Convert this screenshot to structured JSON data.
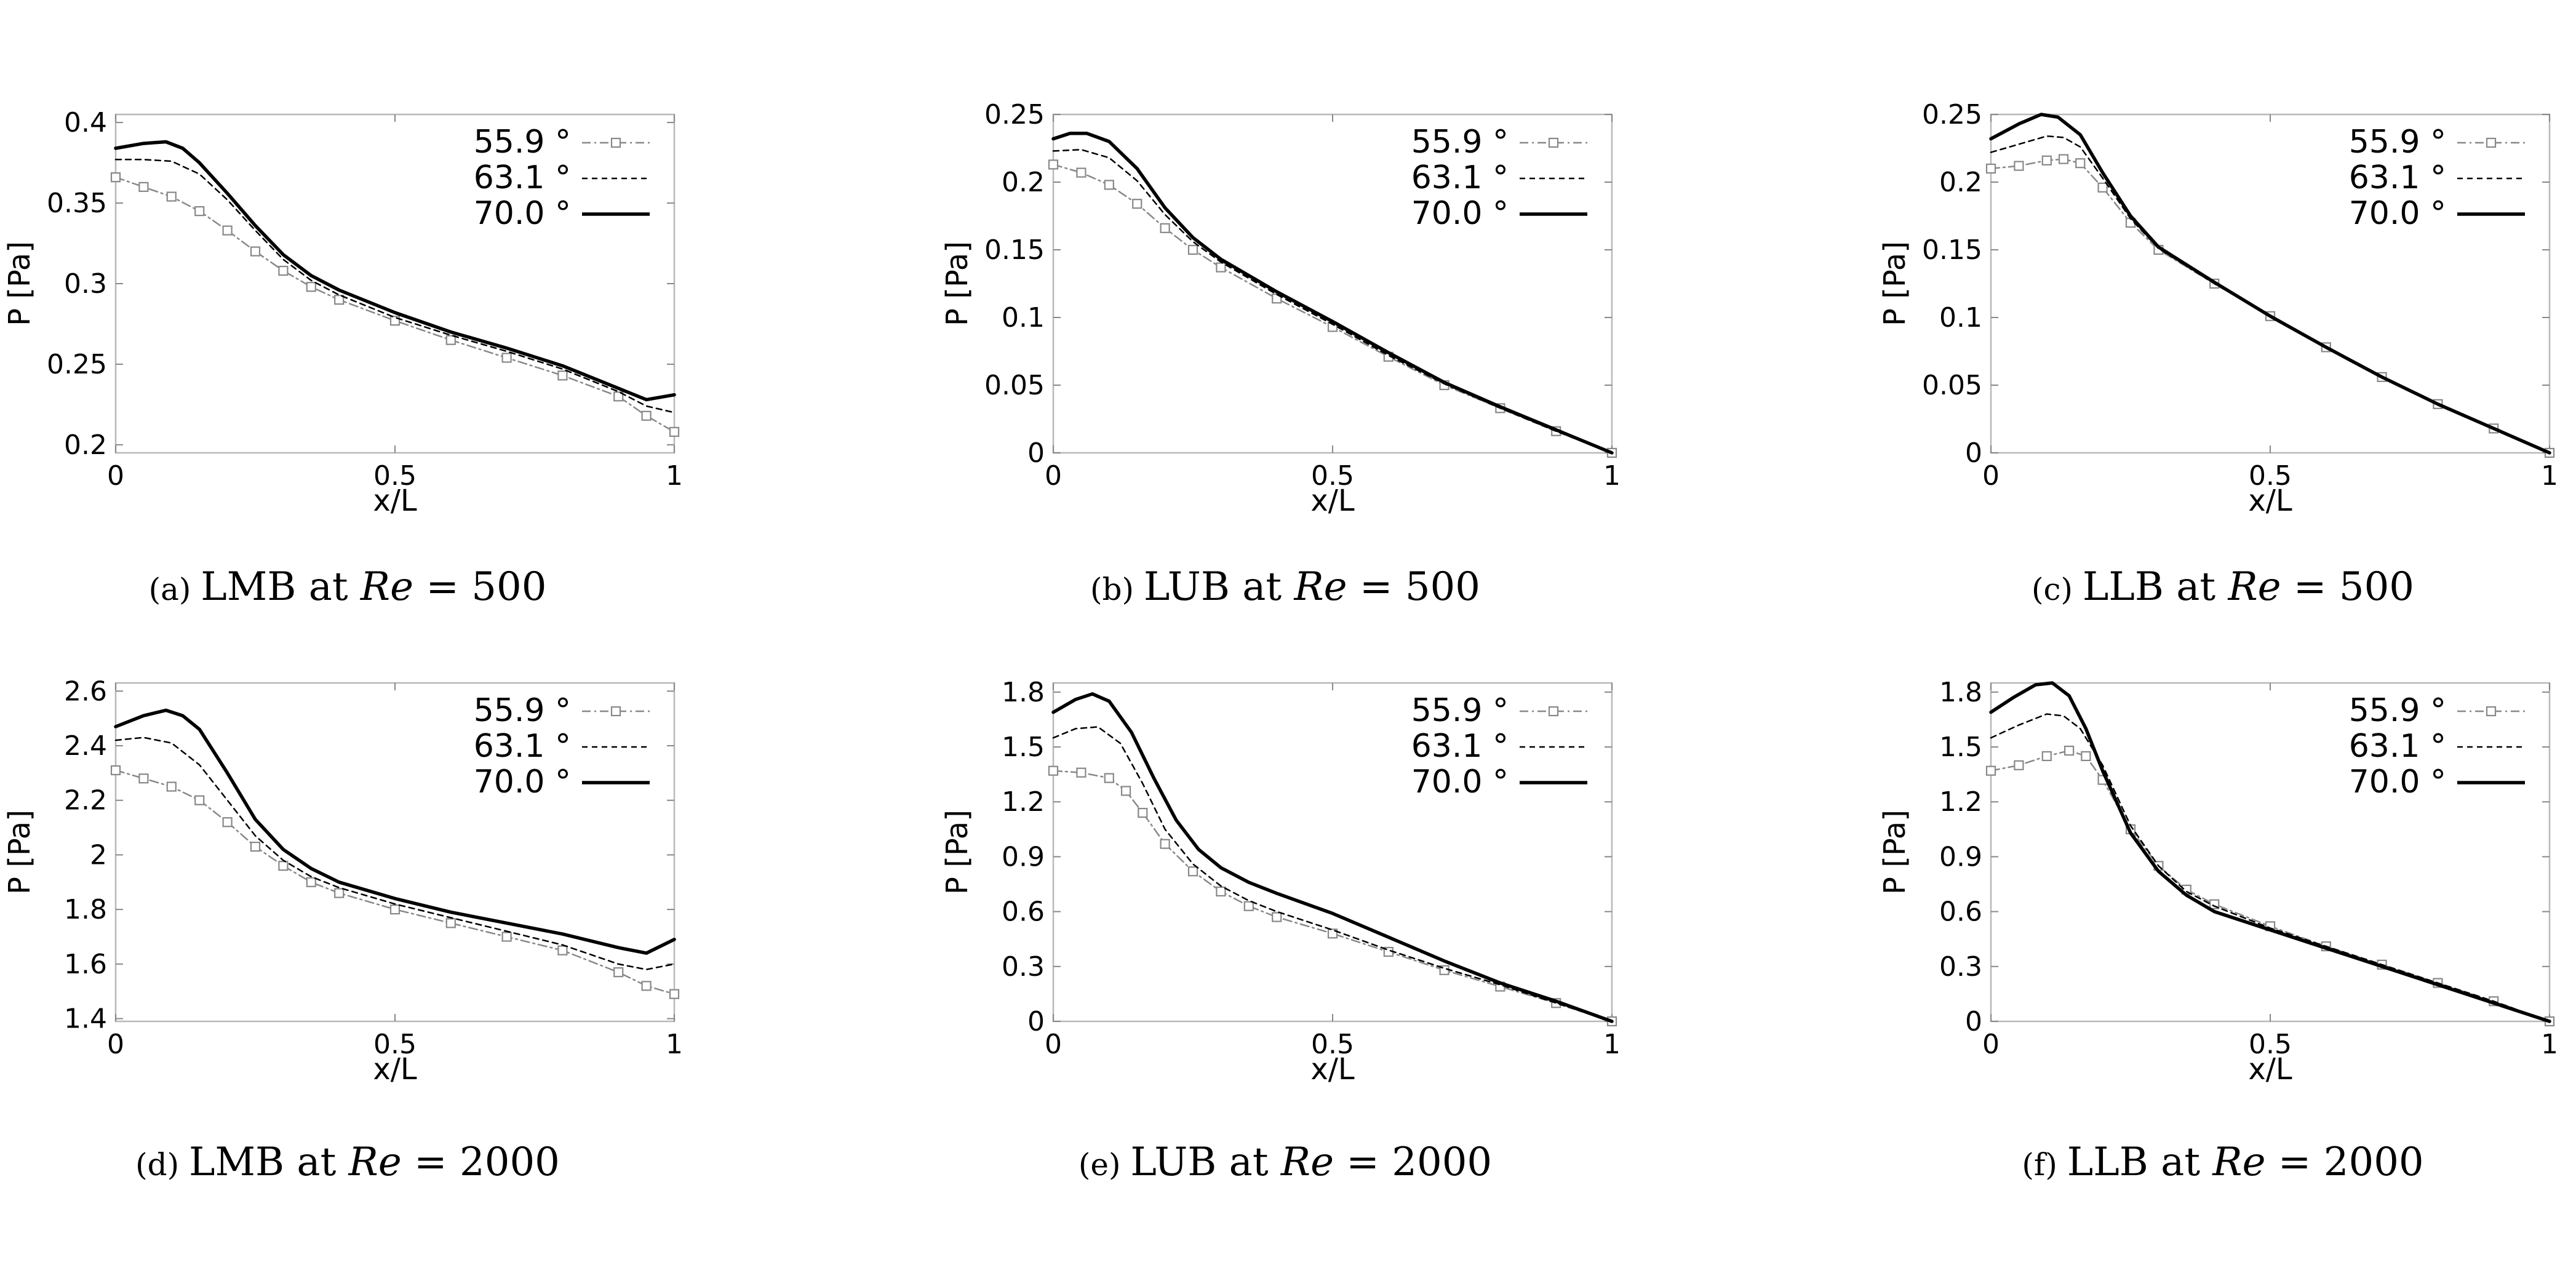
{
  "legend_unit": "°",
  "series_styles": [
    {
      "name": "55.9",
      "color": "#888888",
      "dash": "14,6,3,6",
      "width": 2.5,
      "marker": "square"
    },
    {
      "name": "63.1",
      "color": "#000000",
      "dash": "9,7",
      "width": 2.5,
      "marker": "none"
    },
    {
      "name": "70.0",
      "color": "#000000",
      "dash": "",
      "width": 5.5,
      "marker": "none"
    }
  ],
  "chart_data": [
    {
      "type": "line",
      "caption": {
        "tag": "(a)",
        "text": "LMB at",
        "var": "Re",
        "eq": " = 500"
      },
      "xlabel": "x/L",
      "ylabel": "P [Pa]",
      "xlim": [
        0,
        1
      ],
      "ylim": [
        0.195,
        0.405
      ],
      "xticks": [
        "0",
        "0.5",
        "1"
      ],
      "xtick_values": [
        0,
        0.5,
        1
      ],
      "yticks": [
        "0.2",
        "0.25",
        "0.3",
        "0.35",
        "0.4"
      ],
      "ytick_values": [
        0.2,
        0.25,
        0.3,
        0.35,
        0.4
      ],
      "series": [
        {
          "name": "55.9 °",
          "x": [
            0,
            0.05,
            0.1,
            0.15,
            0.2,
            0.25,
            0.3,
            0.35,
            0.4,
            0.5,
            0.6,
            0.7,
            0.8,
            0.9,
            0.95,
            1.0
          ],
          "y": [
            0.366,
            0.36,
            0.354,
            0.345,
            0.333,
            0.32,
            0.308,
            0.298,
            0.29,
            0.277,
            0.265,
            0.254,
            0.243,
            0.23,
            0.218,
            0.208
          ]
        },
        {
          "name": "63.1 °",
          "x": [
            0,
            0.05,
            0.1,
            0.15,
            0.2,
            0.25,
            0.3,
            0.35,
            0.4,
            0.5,
            0.6,
            0.7,
            0.8,
            0.9,
            0.95,
            1.0
          ],
          "y": [
            0.377,
            0.377,
            0.376,
            0.368,
            0.352,
            0.333,
            0.315,
            0.302,
            0.293,
            0.279,
            0.268,
            0.258,
            0.247,
            0.233,
            0.224,
            0.22
          ]
        },
        {
          "name": "70.0 °",
          "x": [
            0,
            0.05,
            0.09,
            0.12,
            0.15,
            0.2,
            0.25,
            0.3,
            0.35,
            0.4,
            0.5,
            0.6,
            0.7,
            0.8,
            0.9,
            0.95,
            1.0
          ],
          "y": [
            0.384,
            0.387,
            0.388,
            0.384,
            0.375,
            0.356,
            0.336,
            0.318,
            0.305,
            0.296,
            0.282,
            0.27,
            0.26,
            0.249,
            0.235,
            0.228,
            0.231
          ]
        }
      ]
    },
    {
      "type": "line",
      "caption": {
        "tag": "(b)",
        "text": "LUB at",
        "var": "Re",
        "eq": " = 500"
      },
      "xlabel": "x/L",
      "ylabel": "P [Pa]",
      "xlim": [
        0,
        1
      ],
      "ylim": [
        0,
        0.25
      ],
      "xticks": [
        "0",
        "0.5",
        "1"
      ],
      "xtick_values": [
        0,
        0.5,
        1
      ],
      "yticks": [
        "0",
        "0.05",
        "0.1",
        "0.15",
        "0.2",
        "0.25"
      ],
      "ytick_values": [
        0,
        0.05,
        0.1,
        0.15,
        0.2,
        0.25
      ],
      "series": [
        {
          "name": "55.9 °",
          "x": [
            0,
            0.05,
            0.1,
            0.15,
            0.2,
            0.25,
            0.3,
            0.4,
            0.5,
            0.6,
            0.7,
            0.8,
            0.9,
            1.0
          ],
          "y": [
            0.213,
            0.207,
            0.198,
            0.184,
            0.166,
            0.15,
            0.137,
            0.114,
            0.093,
            0.071,
            0.05,
            0.033,
            0.016,
            0.0
          ]
        },
        {
          "name": "63.1 °",
          "x": [
            0,
            0.05,
            0.1,
            0.15,
            0.2,
            0.25,
            0.3,
            0.4,
            0.5,
            0.6,
            0.7,
            0.8,
            0.9,
            1.0
          ],
          "y": [
            0.223,
            0.224,
            0.218,
            0.201,
            0.176,
            0.156,
            0.141,
            0.117,
            0.095,
            0.072,
            0.051,
            0.033,
            0.016,
            0.0
          ]
        },
        {
          "name": "70.0 °",
          "x": [
            0,
            0.03,
            0.06,
            0.1,
            0.15,
            0.2,
            0.25,
            0.3,
            0.4,
            0.5,
            0.6,
            0.7,
            0.8,
            0.9,
            1.0
          ],
          "y": [
            0.232,
            0.236,
            0.236,
            0.23,
            0.21,
            0.181,
            0.159,
            0.143,
            0.119,
            0.097,
            0.074,
            0.052,
            0.034,
            0.017,
            0.0
          ]
        }
      ]
    },
    {
      "type": "line",
      "caption": {
        "tag": "(c)",
        "text": "LLB at",
        "var": "Re",
        "eq": " = 500"
      },
      "xlabel": "x/L",
      "ylabel": "P [Pa]",
      "xlim": [
        0,
        1
      ],
      "ylim": [
        0,
        0.25
      ],
      "xticks": [
        "0",
        "0.5",
        "1"
      ],
      "xtick_values": [
        0,
        0.5,
        1
      ],
      "yticks": [
        "0",
        "0.05",
        "0.1",
        "0.15",
        "0.2",
        "0.25"
      ],
      "ytick_values": [
        0,
        0.05,
        0.1,
        0.15,
        0.2,
        0.25
      ],
      "series": [
        {
          "name": "55.9 °",
          "x": [
            0,
            0.05,
            0.1,
            0.13,
            0.16,
            0.2,
            0.25,
            0.3,
            0.4,
            0.5,
            0.6,
            0.7,
            0.8,
            0.9,
            1.0
          ],
          "y": [
            0.21,
            0.212,
            0.216,
            0.217,
            0.214,
            0.196,
            0.17,
            0.15,
            0.125,
            0.101,
            0.078,
            0.056,
            0.036,
            0.018,
            0.0
          ]
        },
        {
          "name": "63.1 °",
          "x": [
            0,
            0.05,
            0.1,
            0.13,
            0.16,
            0.2,
            0.25,
            0.3,
            0.4,
            0.5,
            0.6,
            0.7,
            0.8,
            0.9,
            1.0
          ],
          "y": [
            0.222,
            0.228,
            0.234,
            0.233,
            0.226,
            0.203,
            0.173,
            0.151,
            0.125,
            0.101,
            0.078,
            0.056,
            0.036,
            0.018,
            0.0
          ]
        },
        {
          "name": "70.0 °",
          "x": [
            0,
            0.05,
            0.09,
            0.12,
            0.16,
            0.2,
            0.25,
            0.3,
            0.4,
            0.5,
            0.6,
            0.7,
            0.8,
            0.9,
            1.0
          ],
          "y": [
            0.232,
            0.243,
            0.25,
            0.248,
            0.235,
            0.207,
            0.175,
            0.152,
            0.126,
            0.101,
            0.078,
            0.056,
            0.036,
            0.018,
            0.0
          ]
        }
      ]
    },
    {
      "type": "line",
      "caption": {
        "tag": "(d)",
        "text": "LMB at",
        "var": "Re",
        "eq": " = 2000"
      },
      "xlabel": "x/L",
      "ylabel": "P [Pa]",
      "xlim": [
        0,
        1
      ],
      "ylim": [
        1.39,
        2.63
      ],
      "xticks": [
        "0",
        "0.5",
        "1"
      ],
      "xtick_values": [
        0,
        0.5,
        1
      ],
      "yticks": [
        "1.4",
        "1.6",
        "1.8",
        "2",
        "2.2",
        "2.4",
        "2.6"
      ],
      "ytick_values": [
        1.4,
        1.6,
        1.8,
        2.0,
        2.2,
        2.4,
        2.6
      ],
      "series": [
        {
          "name": "55.9 °",
          "x": [
            0,
            0.05,
            0.1,
            0.15,
            0.2,
            0.25,
            0.3,
            0.35,
            0.4,
            0.5,
            0.6,
            0.7,
            0.8,
            0.9,
            0.95,
            1.0
          ],
          "y": [
            2.31,
            2.28,
            2.25,
            2.2,
            2.12,
            2.03,
            1.96,
            1.9,
            1.86,
            1.8,
            1.75,
            1.7,
            1.65,
            1.57,
            1.52,
            1.49
          ]
        },
        {
          "name": "63.1 °",
          "x": [
            0,
            0.05,
            0.1,
            0.15,
            0.2,
            0.25,
            0.3,
            0.35,
            0.4,
            0.5,
            0.6,
            0.7,
            0.8,
            0.9,
            0.95,
            1.0
          ],
          "y": [
            2.42,
            2.43,
            2.41,
            2.33,
            2.2,
            2.07,
            1.98,
            1.92,
            1.88,
            1.82,
            1.77,
            1.72,
            1.67,
            1.6,
            1.58,
            1.6
          ]
        },
        {
          "name": "70.0 °",
          "x": [
            0,
            0.05,
            0.09,
            0.12,
            0.15,
            0.2,
            0.25,
            0.3,
            0.35,
            0.4,
            0.5,
            0.6,
            0.7,
            0.8,
            0.9,
            0.95,
            1.0
          ],
          "y": [
            2.47,
            2.51,
            2.53,
            2.51,
            2.46,
            2.3,
            2.13,
            2.02,
            1.95,
            1.9,
            1.84,
            1.79,
            1.75,
            1.71,
            1.66,
            1.64,
            1.69
          ]
        }
      ]
    },
    {
      "type": "line",
      "caption": {
        "tag": "(e)",
        "text": "LUB at",
        "var": "Re",
        "eq": " = 2000"
      },
      "xlabel": "x/L",
      "ylabel": "P [Pa]",
      "xlim": [
        0,
        1
      ],
      "ylim": [
        0,
        1.85
      ],
      "xticks": [
        "0",
        "0.5",
        "1"
      ],
      "xtick_values": [
        0,
        0.5,
        1
      ],
      "yticks": [
        "0",
        "0.3",
        "0.6",
        "0.9",
        "1.2",
        "1.5",
        "1.8"
      ],
      "ytick_values": [
        0,
        0.3,
        0.6,
        0.9,
        1.2,
        1.5,
        1.8
      ],
      "series": [
        {
          "name": "55.9 °",
          "x": [
            0,
            0.05,
            0.1,
            0.13,
            0.16,
            0.2,
            0.25,
            0.3,
            0.35,
            0.4,
            0.5,
            0.6,
            0.7,
            0.8,
            0.9,
            1.0
          ],
          "y": [
            1.37,
            1.36,
            1.33,
            1.26,
            1.14,
            0.97,
            0.82,
            0.71,
            0.63,
            0.57,
            0.48,
            0.38,
            0.28,
            0.19,
            0.1,
            0.0
          ]
        },
        {
          "name": "63.1 °",
          "x": [
            0,
            0.04,
            0.08,
            0.12,
            0.16,
            0.2,
            0.25,
            0.3,
            0.35,
            0.4,
            0.5,
            0.6,
            0.7,
            0.8,
            0.9,
            1.0
          ],
          "y": [
            1.55,
            1.6,
            1.61,
            1.52,
            1.3,
            1.05,
            0.86,
            0.74,
            0.66,
            0.6,
            0.5,
            0.39,
            0.29,
            0.2,
            0.1,
            0.0
          ]
        },
        {
          "name": "70.0 °",
          "x": [
            0,
            0.04,
            0.07,
            0.1,
            0.14,
            0.18,
            0.22,
            0.26,
            0.3,
            0.35,
            0.4,
            0.5,
            0.6,
            0.7,
            0.8,
            0.9,
            1.0
          ],
          "y": [
            1.69,
            1.76,
            1.79,
            1.75,
            1.58,
            1.33,
            1.1,
            0.94,
            0.84,
            0.76,
            0.7,
            0.59,
            0.46,
            0.33,
            0.21,
            0.11,
            0.0
          ]
        }
      ]
    },
    {
      "type": "line",
      "caption": {
        "tag": "(f)",
        "text": "LLB at",
        "var": "Re",
        "eq": " = 2000"
      },
      "xlabel": "x/L",
      "ylabel": "P [Pa]",
      "xlim": [
        0,
        1
      ],
      "ylim": [
        0,
        1.85
      ],
      "xticks": [
        "0",
        "0.5",
        "1"
      ],
      "xtick_values": [
        0,
        0.5,
        1
      ],
      "yticks": [
        "0",
        "0.3",
        "0.6",
        "0.9",
        "1.2",
        "1.5",
        "1.8"
      ],
      "ytick_values": [
        0,
        0.3,
        0.6,
        0.9,
        1.2,
        1.5,
        1.8
      ],
      "series": [
        {
          "name": "55.9 °",
          "x": [
            0,
            0.05,
            0.1,
            0.14,
            0.17,
            0.2,
            0.25,
            0.3,
            0.35,
            0.4,
            0.5,
            0.6,
            0.7,
            0.8,
            0.9,
            1.0
          ],
          "y": [
            1.37,
            1.4,
            1.45,
            1.48,
            1.45,
            1.32,
            1.05,
            0.85,
            0.72,
            0.64,
            0.52,
            0.41,
            0.31,
            0.21,
            0.11,
            0.0
          ]
        },
        {
          "name": "63.1 °",
          "x": [
            0,
            0.05,
            0.1,
            0.13,
            0.16,
            0.2,
            0.25,
            0.3,
            0.35,
            0.4,
            0.5,
            0.6,
            0.7,
            0.8,
            0.9,
            1.0
          ],
          "y": [
            1.55,
            1.62,
            1.68,
            1.67,
            1.6,
            1.4,
            1.07,
            0.85,
            0.71,
            0.63,
            0.51,
            0.41,
            0.31,
            0.21,
            0.11,
            0.0
          ]
        },
        {
          "name": "70.0 °",
          "x": [
            0,
            0.04,
            0.08,
            0.11,
            0.14,
            0.17,
            0.2,
            0.25,
            0.3,
            0.35,
            0.4,
            0.5,
            0.6,
            0.7,
            0.8,
            0.9,
            1.0
          ],
          "y": [
            1.69,
            1.77,
            1.84,
            1.85,
            1.78,
            1.6,
            1.37,
            1.03,
            0.82,
            0.69,
            0.6,
            0.5,
            0.4,
            0.3,
            0.2,
            0.1,
            0.0
          ]
        }
      ]
    }
  ]
}
